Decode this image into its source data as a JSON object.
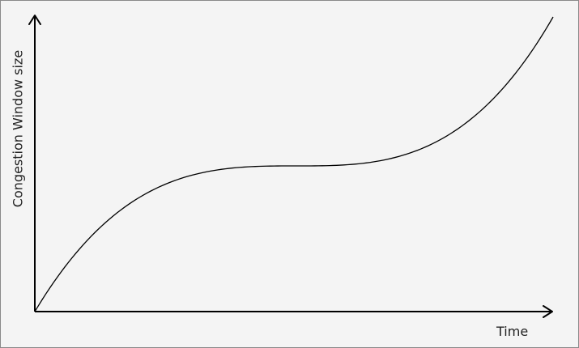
{
  "diagram": {
    "x_axis_label": "Time",
    "y_axis_label": "Congestion Window size",
    "curve": {
      "shape": "cubic",
      "description_points": [
        {
          "x": 0.0,
          "y": 0.0
        },
        {
          "x": 0.5,
          "y": 0.5
        },
        {
          "x": 1.0,
          "y": 1.0
        }
      ]
    }
  }
}
